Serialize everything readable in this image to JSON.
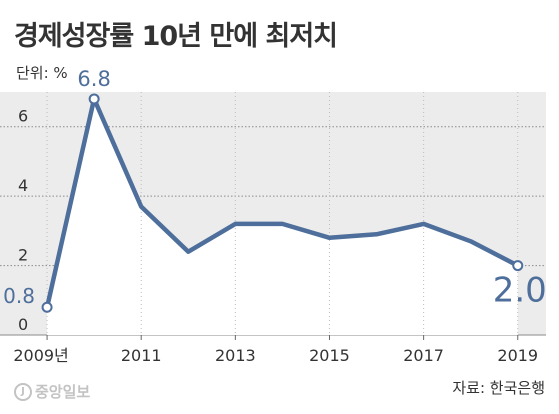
{
  "header": {
    "title": "경제성장률 10년 만에 최저치",
    "unit": "단위: %"
  },
  "footer": {
    "source": "자료: 한국은행",
    "logo_text": "중앙일보"
  },
  "colors": {
    "line": "#4e6f9b",
    "label": "#4e6f9b",
    "area": "#ffffff",
    "plot_bg": "#ececec",
    "grid": "#8a8a8a"
  },
  "chart_data": {
    "type": "area",
    "x": [
      2009,
      2010,
      2011,
      2012,
      2013,
      2014,
      2015,
      2016,
      2017,
      2018,
      2019
    ],
    "series": [
      {
        "values": [
          0.8,
          6.8,
          3.7,
          2.4,
          3.2,
          3.2,
          2.8,
          2.9,
          3.2,
          2.7,
          2.0
        ]
      }
    ],
    "xtick_labels": [
      "2009년",
      "2011",
      "2013",
      "2015",
      "2017",
      "2019"
    ],
    "xtick_values": [
      2009,
      2011,
      2013,
      2015,
      2017,
      2019
    ],
    "yticks": [
      0,
      2,
      4,
      6
    ],
    "ylim": [
      0,
      7
    ],
    "xlim": [
      2008,
      2019.6
    ],
    "annotations": [
      {
        "x": 2009,
        "y": 0.8,
        "text": "0.8"
      },
      {
        "x": 2010,
        "y": 6.8,
        "text": "6.8"
      },
      {
        "x": 2019,
        "y": 2.0,
        "text": "2.0"
      }
    ],
    "grid": true
  }
}
